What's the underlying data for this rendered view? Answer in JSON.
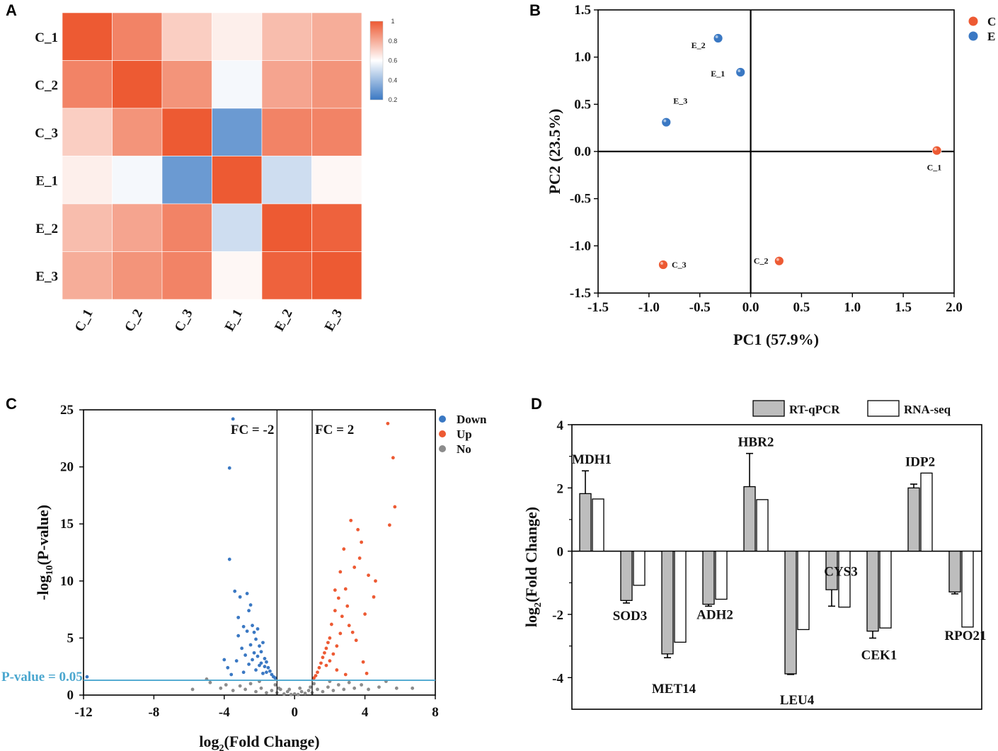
{
  "panels": {
    "a": "A",
    "b": "B",
    "c": "C",
    "d": "D"
  },
  "colors": {
    "red": "#ed5a33",
    "blue": "#3a78c3",
    "grey": "#8c8c8c",
    "light_blue": "#4ba7cf",
    "bar_grey": "#bdbdbd"
  },
  "chart_data": [
    {
      "type": "heatmap",
      "rows": [
        "C_1",
        "C_2",
        "C_3",
        "E_1",
        "E_2",
        "E_3"
      ],
      "cols": [
        "C_1",
        "C_2",
        "C_3",
        "E_1",
        "E_2",
        "E_3"
      ],
      "values": [
        [
          1.0,
          0.9,
          0.72,
          0.64,
          0.76,
          0.8
        ],
        [
          0.9,
          1.0,
          0.86,
          0.58,
          0.82,
          0.86
        ],
        [
          0.72,
          0.86,
          1.0,
          0.3,
          0.9,
          0.9
        ],
        [
          0.64,
          0.58,
          0.3,
          1.0,
          0.5,
          0.62
        ],
        [
          0.76,
          0.82,
          0.9,
          0.5,
          1.0,
          0.98
        ],
        [
          0.8,
          0.86,
          0.9,
          0.62,
          0.98,
          1.0
        ]
      ],
      "colorbar": {
        "min": 0.2,
        "max": 1,
        "ticks": [
          "1",
          "0.8",
          "0.6",
          "0.4",
          "0.2"
        ]
      }
    },
    {
      "type": "scatter",
      "xlabel": "PC1 (57.9%)",
      "ylabel": "PC2 (23.5%)",
      "xlim": [
        -1.5,
        2.0
      ],
      "ylim": [
        -1.5,
        1.5
      ],
      "xticks": [
        "-1.5",
        "-1.0",
        "-0.5",
        "0.0",
        "0.5",
        "1.0",
        "1.5",
        "2.0"
      ],
      "yticks": [
        "1.5",
        "1.0",
        "0.5",
        "0.0",
        "-0.5",
        "-1.0",
        "-1.5"
      ],
      "legend": [
        {
          "name": "C"
        },
        {
          "name": "E"
        }
      ],
      "points": [
        {
          "label": "E_2",
          "x": -0.32,
          "y": 1.2,
          "group": "E"
        },
        {
          "label": "E_1",
          "x": -0.1,
          "y": 0.84,
          "group": "E"
        },
        {
          "label": "E_3",
          "x": -0.83,
          "y": 0.31,
          "group": "E"
        },
        {
          "label": "C_1",
          "x": 1.83,
          "y": 0.01,
          "group": "C"
        },
        {
          "label": "C_2",
          "x": 0.28,
          "y": -1.16,
          "group": "C"
        },
        {
          "label": "C_3",
          "x": -0.86,
          "y": -1.2,
          "group": "C"
        }
      ]
    },
    {
      "type": "scatter",
      "xlabel_main": "log",
      "xlabel_sub": "2",
      "xlabel_rest": "(Fold Change)",
      "ylabel_main": "-log",
      "ylabel_sub": "10",
      "ylabel_rest": "(P-value)",
      "xlim": [
        -12,
        8
      ],
      "ylim": [
        0,
        25
      ],
      "xticks": [
        "-12",
        "-8",
        "-4",
        "0",
        "4",
        "8"
      ],
      "yticks": [
        "25",
        "20",
        "15",
        "10",
        "5",
        "0"
      ],
      "fc_lines": [
        {
          "x": -1,
          "label": "FC = -2"
        },
        {
          "x": 1,
          "label": "FC = 2"
        }
      ],
      "pvalue_line": {
        "y": 1.3,
        "label": "P-value = 0.05"
      },
      "legend": [
        {
          "name": "Down"
        },
        {
          "name": "Up"
        },
        {
          "name": "No"
        }
      ],
      "series": [
        {
          "name": "Down",
          "points": [
            [
              -3.5,
              24.2
            ],
            [
              -3.7,
              19.9
            ],
            [
              -3.7,
              11.9
            ],
            [
              -3.4,
              9.1
            ],
            [
              -3.1,
              8.6
            ],
            [
              -3.2,
              6.8
            ],
            [
              -2.9,
              6.0
            ],
            [
              -2.7,
              8.9
            ],
            [
              -2.6,
              7.4
            ],
            [
              -2.5,
              7.9
            ],
            [
              -2.4,
              6.1
            ],
            [
              -2.3,
              5.5
            ],
            [
              -2.2,
              4.9
            ],
            [
              -2.1,
              5.8
            ],
            [
              -2.0,
              4.3
            ],
            [
              -1.9,
              3.8
            ],
            [
              -1.8,
              4.6
            ],
            [
              -1.7,
              3.2
            ],
            [
              -1.6,
              2.9
            ],
            [
              -1.5,
              2.4
            ],
            [
              -1.4,
              2.1
            ],
            [
              -1.3,
              1.8
            ],
            [
              -1.2,
              1.6
            ],
            [
              -1.1,
              1.5
            ],
            [
              -2.8,
              3.5
            ],
            [
              -3.0,
              4.1
            ],
            [
              -3.3,
              3.0
            ],
            [
              -2.6,
              2.7
            ],
            [
              -2.4,
              3.1
            ],
            [
              -2.2,
              2.2
            ],
            [
              -2.0,
              2.6
            ],
            [
              -1.8,
              1.9
            ],
            [
              -1.6,
              2.0
            ],
            [
              -3.6,
              1.8
            ],
            [
              -3.8,
              2.4
            ],
            [
              -4.0,
              3.1
            ],
            [
              -2.9,
              2.0
            ],
            [
              -2.5,
              4.4
            ],
            [
              -2.3,
              3.7
            ],
            [
              -2.1,
              3.4
            ],
            [
              -1.9,
              2.8
            ],
            [
              -1.7,
              2.5
            ],
            [
              -3.2,
              5.2
            ],
            [
              -2.7,
              5.6
            ],
            [
              -11.8,
              1.6
            ]
          ]
        },
        {
          "name": "Up",
          "points": [
            [
              5.3,
              23.8
            ],
            [
              5.6,
              20.8
            ],
            [
              5.7,
              16.5
            ],
            [
              5.4,
              14.9
            ],
            [
              3.2,
              15.3
            ],
            [
              3.6,
              14.5
            ],
            [
              3.8,
              13.4
            ],
            [
              2.8,
              12.8
            ],
            [
              4.2,
              10.5
            ],
            [
              3.4,
              11.2
            ],
            [
              2.6,
              10.8
            ],
            [
              2.9,
              9.3
            ],
            [
              2.5,
              8.5
            ],
            [
              3.0,
              7.8
            ],
            [
              2.3,
              7.4
            ],
            [
              2.7,
              6.9
            ],
            [
              2.1,
              6.2
            ],
            [
              3.3,
              5.5
            ],
            [
              2.0,
              5.0
            ],
            [
              1.9,
              4.6
            ],
            [
              1.8,
              4.1
            ],
            [
              1.7,
              3.7
            ],
            [
              1.6,
              3.3
            ],
            [
              1.5,
              2.8
            ],
            [
              1.4,
              2.4
            ],
            [
              1.3,
              2.0
            ],
            [
              1.2,
              1.7
            ],
            [
              1.1,
              1.5
            ],
            [
              3.1,
              6.1
            ],
            [
              2.4,
              4.3
            ],
            [
              2.2,
              3.6
            ],
            [
              2.6,
              5.4
            ],
            [
              2.0,
              3.0
            ],
            [
              1.8,
              2.6
            ],
            [
              4.5,
              8.6
            ],
            [
              4.0,
              7.1
            ],
            [
              3.5,
              4.8
            ],
            [
              3.9,
              2.9
            ],
            [
              2.9,
              1.8
            ],
            [
              2.4,
              2.2
            ],
            [
              2.3,
              9.2
            ],
            [
              3.7,
              12.0
            ],
            [
              4.6,
              10.0
            ],
            [
              4.1,
              1.9
            ]
          ]
        },
        {
          "name": "No",
          "points": [
            [
              -5.8,
              0.5
            ],
            [
              -4.8,
              1.1
            ],
            [
              -4.2,
              0.6
            ],
            [
              -3.9,
              0.9
            ],
            [
              -3.5,
              0.4
            ],
            [
              -3.1,
              0.8
            ],
            [
              -2.8,
              0.5
            ],
            [
              -2.5,
              1.0
            ],
            [
              -2.2,
              0.3
            ],
            [
              -1.9,
              0.6
            ],
            [
              -1.6,
              0.2
            ],
            [
              -1.3,
              0.4
            ],
            [
              -1.0,
              0.2
            ],
            [
              -0.8,
              0.5
            ],
            [
              -0.6,
              0.1
            ],
            [
              -0.4,
              0.3
            ],
            [
              -0.2,
              0.05
            ],
            [
              0.0,
              0.1
            ],
            [
              0.2,
              0.05
            ],
            [
              0.4,
              0.3
            ],
            [
              0.6,
              0.15
            ],
            [
              0.8,
              0.4
            ],
            [
              1.0,
              0.2
            ],
            [
              1.3,
              0.5
            ],
            [
              1.6,
              0.3
            ],
            [
              1.9,
              0.7
            ],
            [
              2.2,
              0.4
            ],
            [
              2.5,
              0.9
            ],
            [
              2.8,
              0.5
            ],
            [
              3.1,
              1.1
            ],
            [
              3.4,
              0.6
            ],
            [
              3.8,
              0.9
            ],
            [
              4.2,
              0.5
            ],
            [
              4.8,
              0.7
            ],
            [
              5.2,
              1.2
            ],
            [
              5.8,
              0.6
            ],
            [
              6.7,
              0.6
            ],
            [
              -5.0,
              1.4
            ],
            [
              -1.1,
              0.9
            ],
            [
              1.1,
              1.0
            ],
            [
              -0.9,
              0.6
            ],
            [
              0.9,
              0.7
            ],
            [
              -2.0,
              1.2
            ],
            [
              2.0,
              1.2
            ],
            [
              -0.3,
              0.5
            ],
            [
              0.3,
              0.6
            ]
          ]
        }
      ]
    },
    {
      "type": "bar",
      "ylabel_main": "log",
      "ylabel_sub": "2",
      "ylabel_rest": "(Fold Change)",
      "ylim": [
        -5,
        4
      ],
      "yticks": [
        "4",
        "2",
        "0",
        "-2",
        "-4"
      ],
      "categories": [
        "MDH1",
        "SOD3",
        "MET14",
        "ADH2",
        "HBR2",
        "LEU4",
        "CYS3",
        "CEK1",
        "IDP2",
        "RPO21"
      ],
      "series": [
        {
          "name": "RT-qPCR",
          "values": [
            1.82,
            -1.56,
            -3.25,
            -1.68,
            2.04,
            -3.88,
            -1.22,
            -2.53,
            2.0,
            -1.29
          ],
          "errors": [
            0.72,
            0.08,
            0.12,
            0.06,
            1.05,
            0.02,
            0.52,
            0.22,
            0.12,
            0.06
          ]
        },
        {
          "name": "RNA-seq",
          "values": [
            1.65,
            -1.08,
            -2.88,
            -1.52,
            1.63,
            -2.48,
            -1.77,
            -2.43,
            2.47,
            -2.4
          ]
        }
      ]
    }
  ]
}
